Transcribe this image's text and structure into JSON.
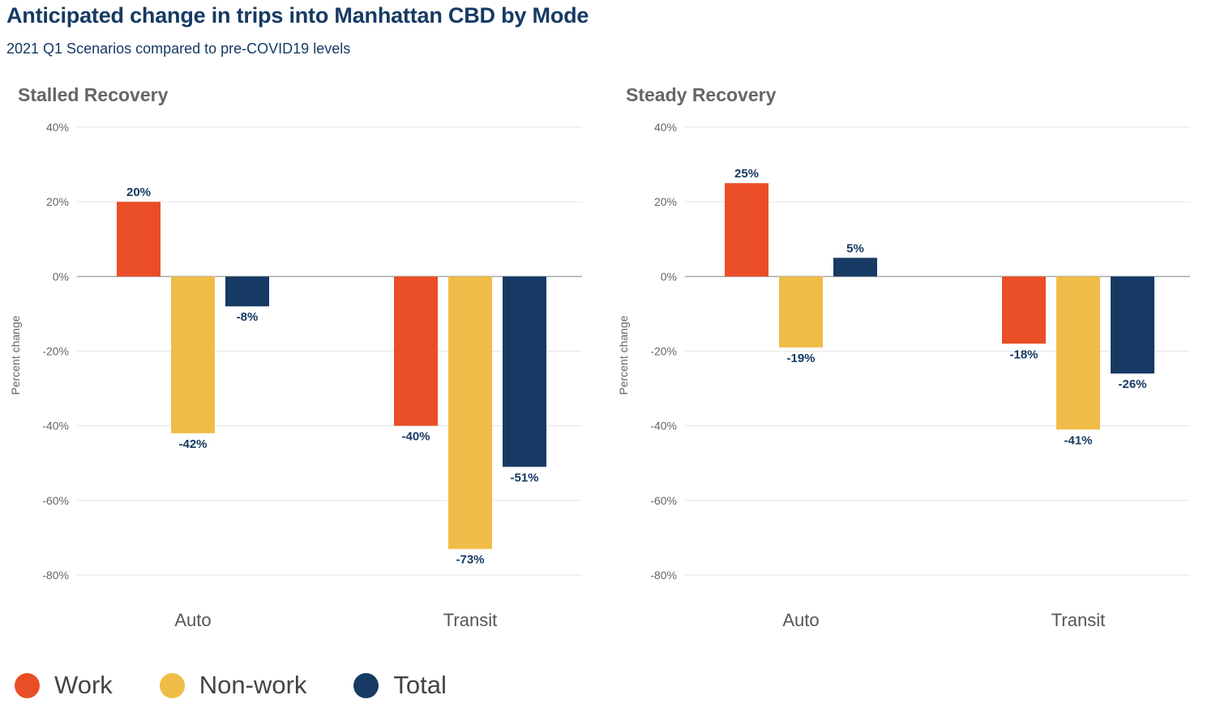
{
  "header": {
    "title": "Anticipated change in trips into Manhattan CBD by Mode",
    "subtitle": "2021 Q1 Scenarios compared to pre-COVID19 levels"
  },
  "colors": {
    "work": "#ea4e27",
    "nonwork": "#efbd47",
    "total": "#163a63",
    "axis_text": "#666666",
    "label_text": "#163a63",
    "grid": "#e6e6e6",
    "zero_line": "#aaaaaa",
    "panel_title": "#666666"
  },
  "legend": [
    {
      "name": "Work",
      "color": "#ea4e27"
    },
    {
      "name": "Non-work",
      "color": "#efbd47"
    },
    {
      "name": "Total",
      "color": "#163a63"
    }
  ],
  "chart_data": [
    {
      "type": "bar",
      "title": "Stalled Recovery",
      "ylabel": "Percent change",
      "xlabel": "",
      "ylim": [
        -80,
        40
      ],
      "yticks": [
        40,
        20,
        0,
        -20,
        -40,
        -60,
        -80
      ],
      "ytick_labels": [
        "40%",
        "20%",
        "0%",
        "-20%",
        "-40%",
        "-60%",
        "-80%"
      ],
      "categories": [
        "Auto",
        "Transit"
      ],
      "grid": true,
      "legend_position": "bottom-left",
      "series": [
        {
          "name": "Work",
          "values": [
            20,
            -40
          ],
          "labels": [
            "20%",
            "-40%"
          ]
        },
        {
          "name": "Non-work",
          "values": [
            -42,
            -73
          ],
          "labels": [
            "-42%",
            "-73%"
          ]
        },
        {
          "name": "Total",
          "values": [
            -8,
            -51
          ],
          "labels": [
            "-8%",
            "-51%"
          ]
        }
      ]
    },
    {
      "type": "bar",
      "title": "Steady Recovery",
      "ylabel": "Percent change",
      "xlabel": "",
      "ylim": [
        -80,
        40
      ],
      "yticks": [
        40,
        20,
        0,
        -20,
        -40,
        -60,
        -80
      ],
      "ytick_labels": [
        "40%",
        "20%",
        "0%",
        "-20%",
        "-40%",
        "-60%",
        "-80%"
      ],
      "categories": [
        "Auto",
        "Transit"
      ],
      "grid": true,
      "legend_position": "bottom-left",
      "series": [
        {
          "name": "Work",
          "values": [
            25,
            -18
          ],
          "labels": [
            "25%",
            "-18%"
          ]
        },
        {
          "name": "Non-work",
          "values": [
            -19,
            -41
          ],
          "labels": [
            "-19%",
            "-41%"
          ]
        },
        {
          "name": "Total",
          "values": [
            5,
            -26
          ],
          "labels": [
            "5%",
            "-26%"
          ]
        }
      ]
    }
  ]
}
